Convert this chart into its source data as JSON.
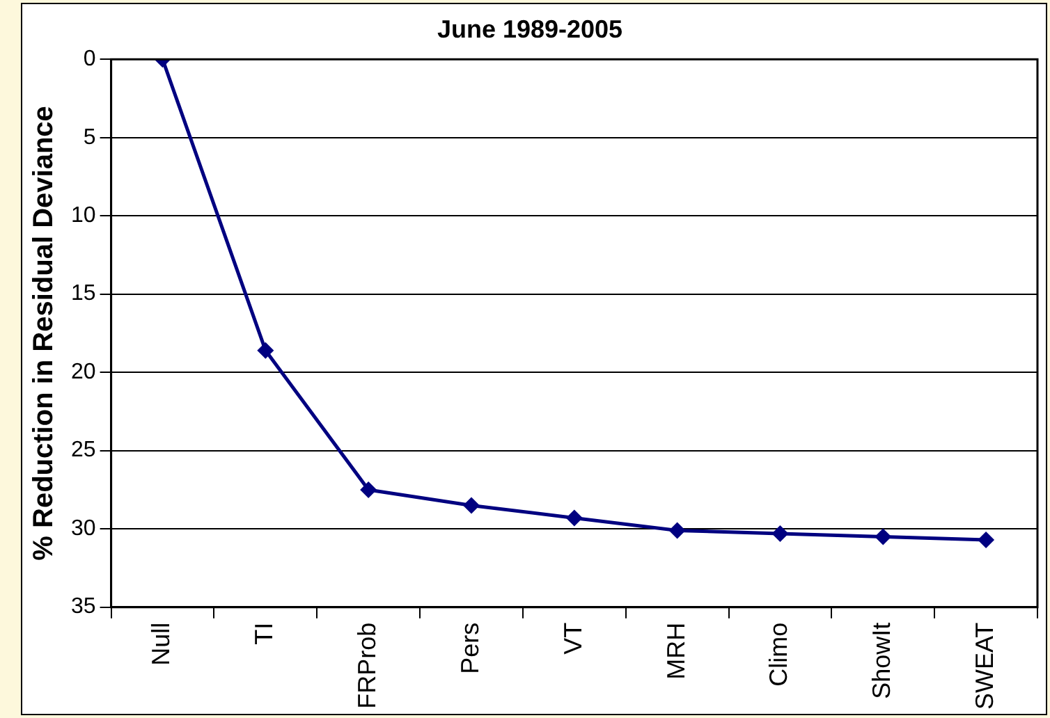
{
  "chart_data": {
    "type": "line",
    "title": "June 1989-2005",
    "ylabel": "% Reduction in Residual Deviance",
    "categories": [
      "Null",
      "TI",
      "FRProb",
      "Pers",
      "VT",
      "MRH",
      "Climo",
      "ShowIt",
      "SWEAT"
    ],
    "series": [
      {
        "color": "#000080",
        "values": [
          0,
          18.6,
          27.5,
          28.5,
          29.3,
          30.1,
          30.3,
          30.5,
          30.7
        ]
      }
    ],
    "ylim": [
      35,
      0
    ],
    "yticks": [
      0,
      5,
      10,
      15,
      20,
      25,
      30,
      35
    ],
    "grid": "y",
    "legend": false,
    "marker": "diamond",
    "line_style": "solid"
  }
}
